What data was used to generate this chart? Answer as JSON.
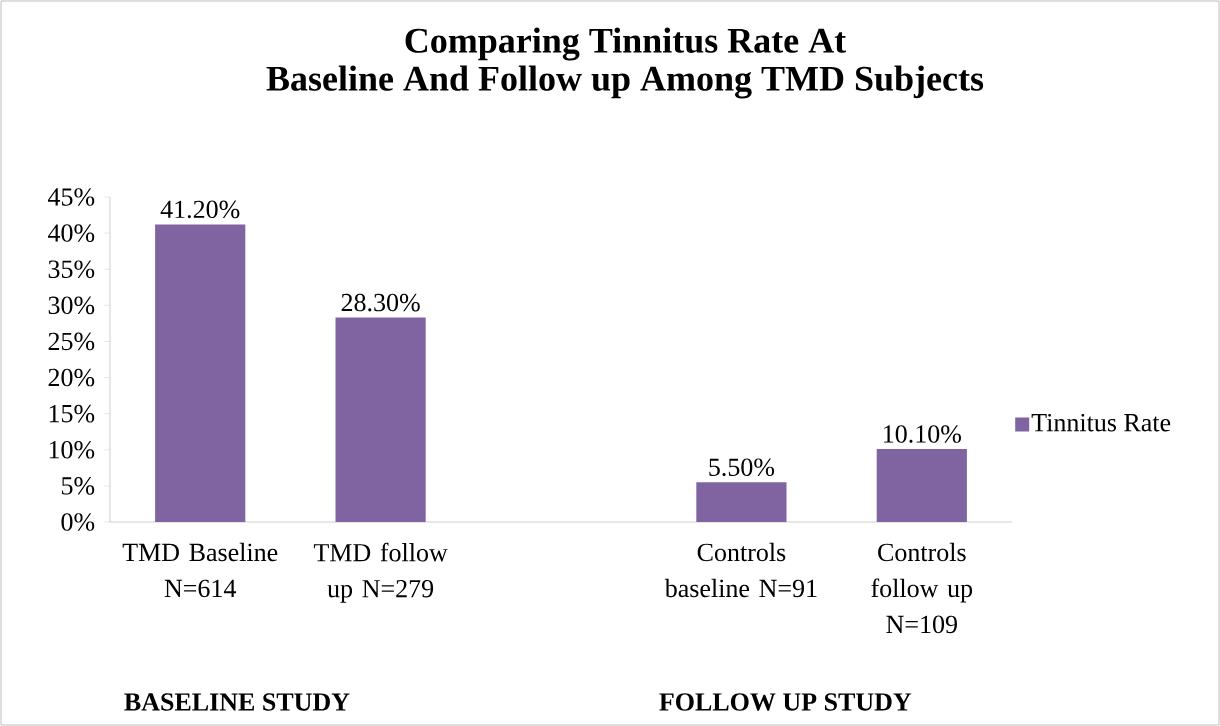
{
  "chart_data": {
    "type": "bar",
    "title": "Comparing Tinnitus Rate At",
    "subtitle": "Baseline And Follow up Among TMD Subjects",
    "categories": [
      "TMD Baseline N=614",
      "TMD follow up N=279",
      null,
      "Controls baseline N=91",
      "Controls follow up N=109"
    ],
    "series": [
      {
        "name": "Tinnitus Rate",
        "color": "#8064a2",
        "values": [
          41.2,
          28.3,
          null,
          5.5,
          10.1
        ],
        "value_labels": [
          "41.20%",
          "28.30%",
          null,
          "5.50%",
          "10.10%"
        ]
      }
    ],
    "ylim": [
      0,
      45
    ],
    "yticks": [
      {
        "value": 0,
        "label": "0%"
      },
      {
        "value": 5,
        "label": "5%"
      },
      {
        "value": 10,
        "label": "10%"
      },
      {
        "value": 15,
        "label": "15%"
      },
      {
        "value": 20,
        "label": "20%"
      },
      {
        "value": 25,
        "label": "25%"
      },
      {
        "value": 30,
        "label": "30%"
      },
      {
        "value": 35,
        "label": "35%"
      },
      {
        "value": 40,
        "label": "40%"
      },
      {
        "value": 45,
        "label": "45%"
      }
    ],
    "annotations": [
      "BASELINE STUDY",
      "FOLLOW UP STUDY"
    ],
    "legend": "right",
    "grid": false
  }
}
